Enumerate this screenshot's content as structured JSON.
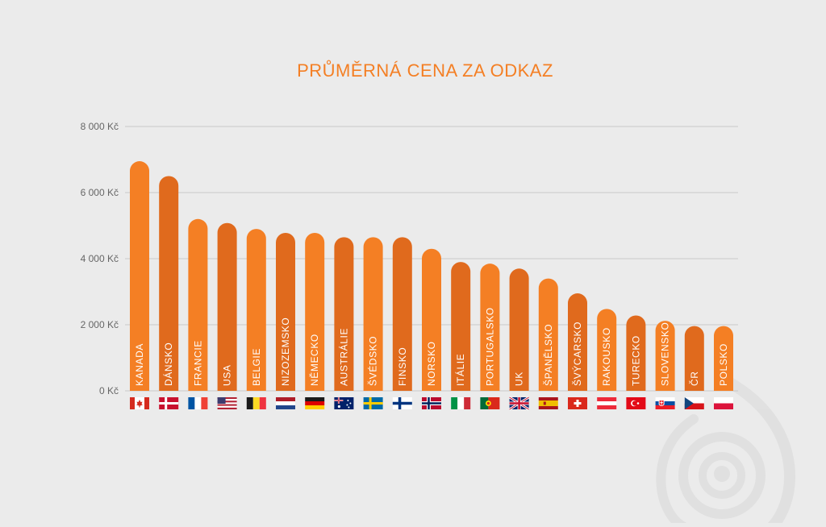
{
  "chart_data": {
    "type": "bar",
    "title": "PRŮMĚRNÁ CENA ZA ODKAZ",
    "xlabel": "",
    "ylabel": "",
    "ylim": [
      0,
      8000
    ],
    "y_ticks": [
      0,
      2000,
      4000,
      6000,
      8000
    ],
    "y_tick_labels": [
      "0 Kč",
      "2 000 Kč",
      "4 000 Kč",
      "6 000 Kč",
      "8 000 Kč"
    ],
    "grid": true,
    "categories": [
      "KANADA",
      "DÁNSKO",
      "FRANCIE",
      "USA",
      "BELGIE",
      "NIZOZEMSKO",
      "NĚMECKO",
      "AUSTRÁLIE",
      "ŠVÉDSKO",
      "FINSKO",
      "NORSKO",
      "ITÁLIE",
      "PORTUGALSKO",
      "UK",
      "ŠPANĚLSKO",
      "ŠVÝCARSKO",
      "RAKOUSKO",
      "TURECKO",
      "SLOVENSKO",
      "ČR",
      "POLSKO"
    ],
    "values": [
      6950,
      6500,
      5200,
      5080,
      4900,
      4780,
      4780,
      4650,
      4650,
      4650,
      4300,
      3900,
      3850,
      3700,
      3400,
      2950,
      2480,
      2280,
      2120,
      1960,
      1960
    ],
    "flags": [
      "flag-canada-icon",
      "flag-denmark-icon",
      "flag-france-icon",
      "flag-usa-icon",
      "flag-belgium-icon",
      "flag-netherlands-icon",
      "flag-germany-icon",
      "flag-australia-icon",
      "flag-sweden-icon",
      "flag-finland-icon",
      "flag-norway-icon",
      "flag-italy-icon",
      "flag-portugal-icon",
      "flag-uk-icon",
      "flag-spain-icon",
      "flag-switzerland-icon",
      "flag-austria-icon",
      "flag-turkey-icon",
      "flag-slovakia-icon",
      "flag-czechia-icon",
      "flag-poland-icon"
    ],
    "colors": {
      "bar_light": "#f47f24",
      "bar_dark": "#e06a1d",
      "title": "#f47f24",
      "grid": "#c9c9c9",
      "tick_text": "#666666"
    }
  }
}
